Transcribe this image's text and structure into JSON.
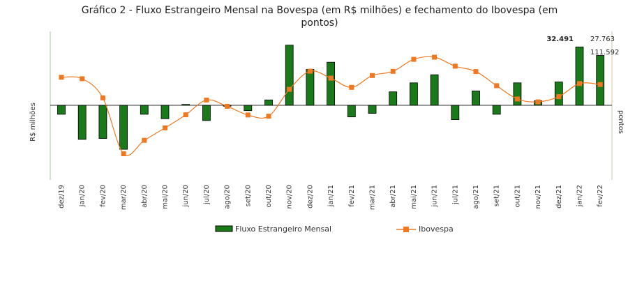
{
  "chart_data": {
    "type": "bar",
    "title_line1": "Gráfico 2 - Fluxo Estrangeiro Mensal na Bovespa (em R$ milhões) e fechamento do Ibovespa (em",
    "title_line2": "pontos)",
    "ylabel_left": "R$ milhões",
    "ylabel_right": "pontos",
    "categories": [
      "dez/19",
      "jan/20",
      "fev/20",
      "mar/20",
      "abr/20",
      "mai/20",
      "jun/20",
      "jul/20",
      "ago/20",
      "set/20",
      "out/20",
      "nov/20",
      "dez/20",
      "jan/21",
      "fev/21",
      "mar/21",
      "abr/21",
      "mai/21",
      "jun/21",
      "jul/21",
      "ago/21",
      "set/21",
      "out/21",
      "nov/21",
      "dez/21",
      "jan/22",
      "fev/22"
    ],
    "series": [
      {
        "name": "Fluxo Estrangeiro Mensal",
        "type": "bar",
        "color": "#1a7a1a",
        "values": [
          -5000,
          -19000,
          -18500,
          -24500,
          -5000,
          -7500,
          500,
          -8500,
          -500,
          -3000,
          3000,
          33500,
          20000,
          24000,
          -6500,
          -4500,
          7500,
          12500,
          17000,
          -8000,
          8000,
          -5000,
          12500,
          2500,
          13000,
          32491,
          27763
        ]
      },
      {
        "name": "Ibovespa",
        "type": "line",
        "color": "#f07820",
        "values": [
          115600,
          114800,
          104100,
          73000,
          80500,
          87400,
          94700,
          102900,
          99400,
          94600,
          93900,
          108900,
          119000,
          115100,
          110000,
          116600,
          118900,
          125600,
          126800,
          121800,
          118800,
          110900,
          103500,
          101900,
          104800,
          112100,
          111592
        ]
      }
    ],
    "annotations": {
      "flux_last_jan": "32.491",
      "flux_last_feb": "27.763",
      "ibov_last": "111.592"
    },
    "y_left_range": [
      -40000,
      40000
    ],
    "y_right_range": [
      60000,
      140000
    ],
    "legend_position": "bottom"
  }
}
